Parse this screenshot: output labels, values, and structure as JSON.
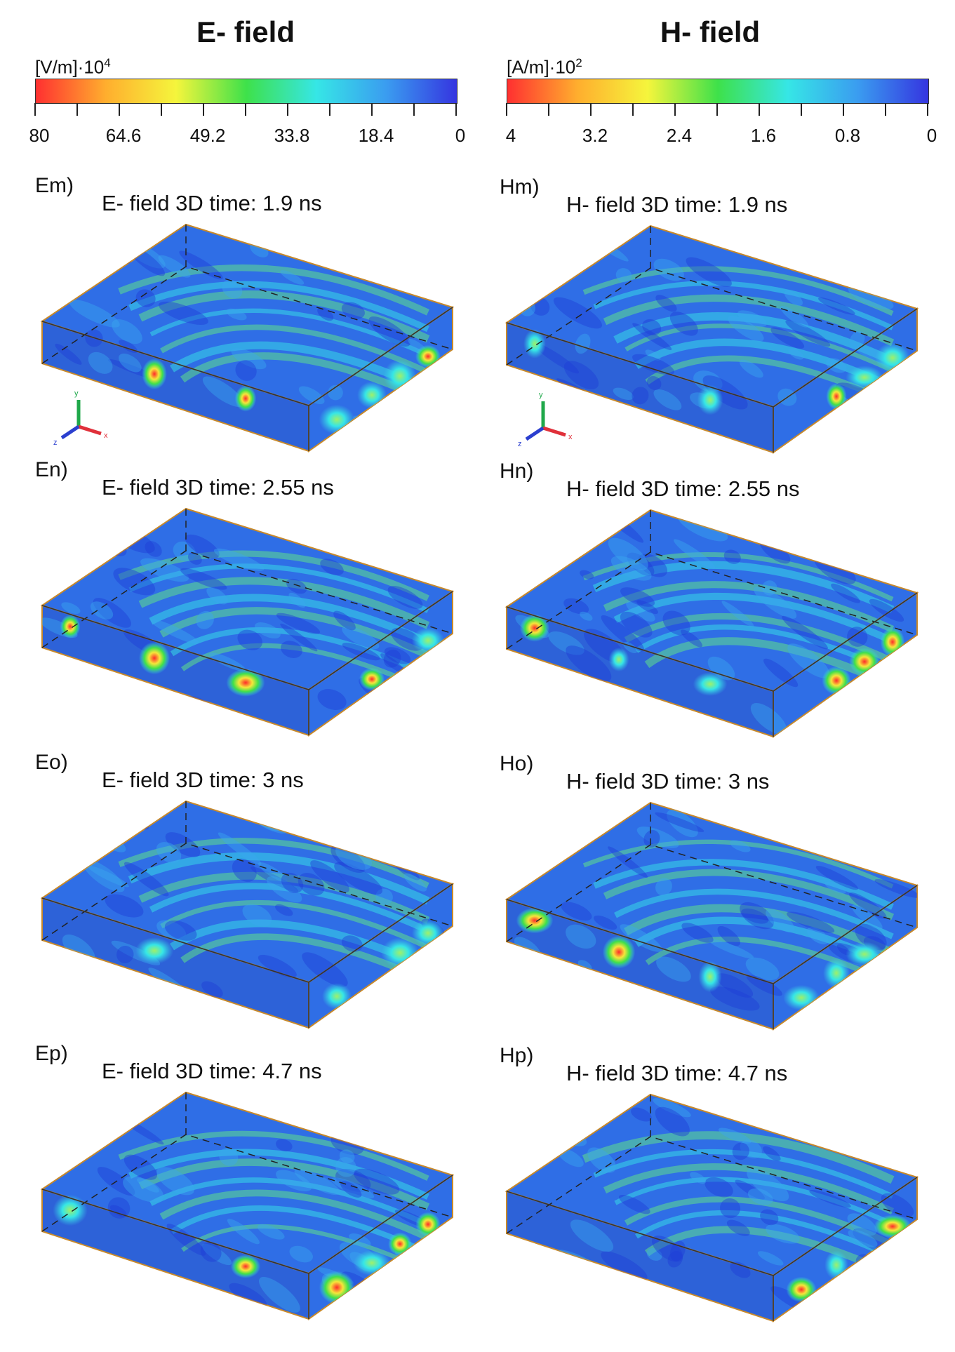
{
  "columns": [
    {
      "title": "E- field",
      "legend": {
        "unit_text": "[V/m]·10",
        "unit_exp": "4",
        "tick_labels": [
          "80",
          "64.6",
          "49.2",
          "33.8",
          "18.4",
          "0"
        ]
      },
      "panels": [
        {
          "label": "Em)",
          "title": "E- field   3D    time: 1.9 ns"
        },
        {
          "label": "En)",
          "title": "E- field   3D    time: 2.55 ns"
        },
        {
          "label": "Eo)",
          "title": "E- field   3D    time: 3 ns"
        },
        {
          "label": "Ep)",
          "title": "E- field   3D    time: 4.7 ns"
        }
      ]
    },
    {
      "title": "H- field",
      "legend": {
        "unit_text": "[A/m]·10",
        "unit_exp": "2",
        "tick_labels": [
          "4",
          "3.2",
          "2.4",
          "1.6",
          "0.8",
          "0"
        ]
      },
      "panels": [
        {
          "label": "Hm)",
          "title": "H- field   3D    time: 1.9 ns"
        },
        {
          "label": "Hn)",
          "title": "H- field   3D    time: 2.55 ns"
        },
        {
          "label": "Ho)",
          "title": "H- field   3D    time: 3 ns"
        },
        {
          "label": "Hp)",
          "title": "H- field   3D    time: 4.7 ns"
        }
      ]
    }
  ],
  "axis_labels": {
    "y": "y",
    "x": "x",
    "z": "z"
  },
  "colors": {
    "colorbar": [
      "#ff3030",
      "#ffae2e",
      "#f5f53c",
      "#3ee14a",
      "#36e6e6",
      "#3a9cf0",
      "#3535e0"
    ],
    "slab_base": "#2f6ee6",
    "slab_edge": "#c8892a",
    "axis_y": "#1fa84a",
    "axis_x": "#e0303a",
    "axis_z": "#2b3fcf"
  }
}
